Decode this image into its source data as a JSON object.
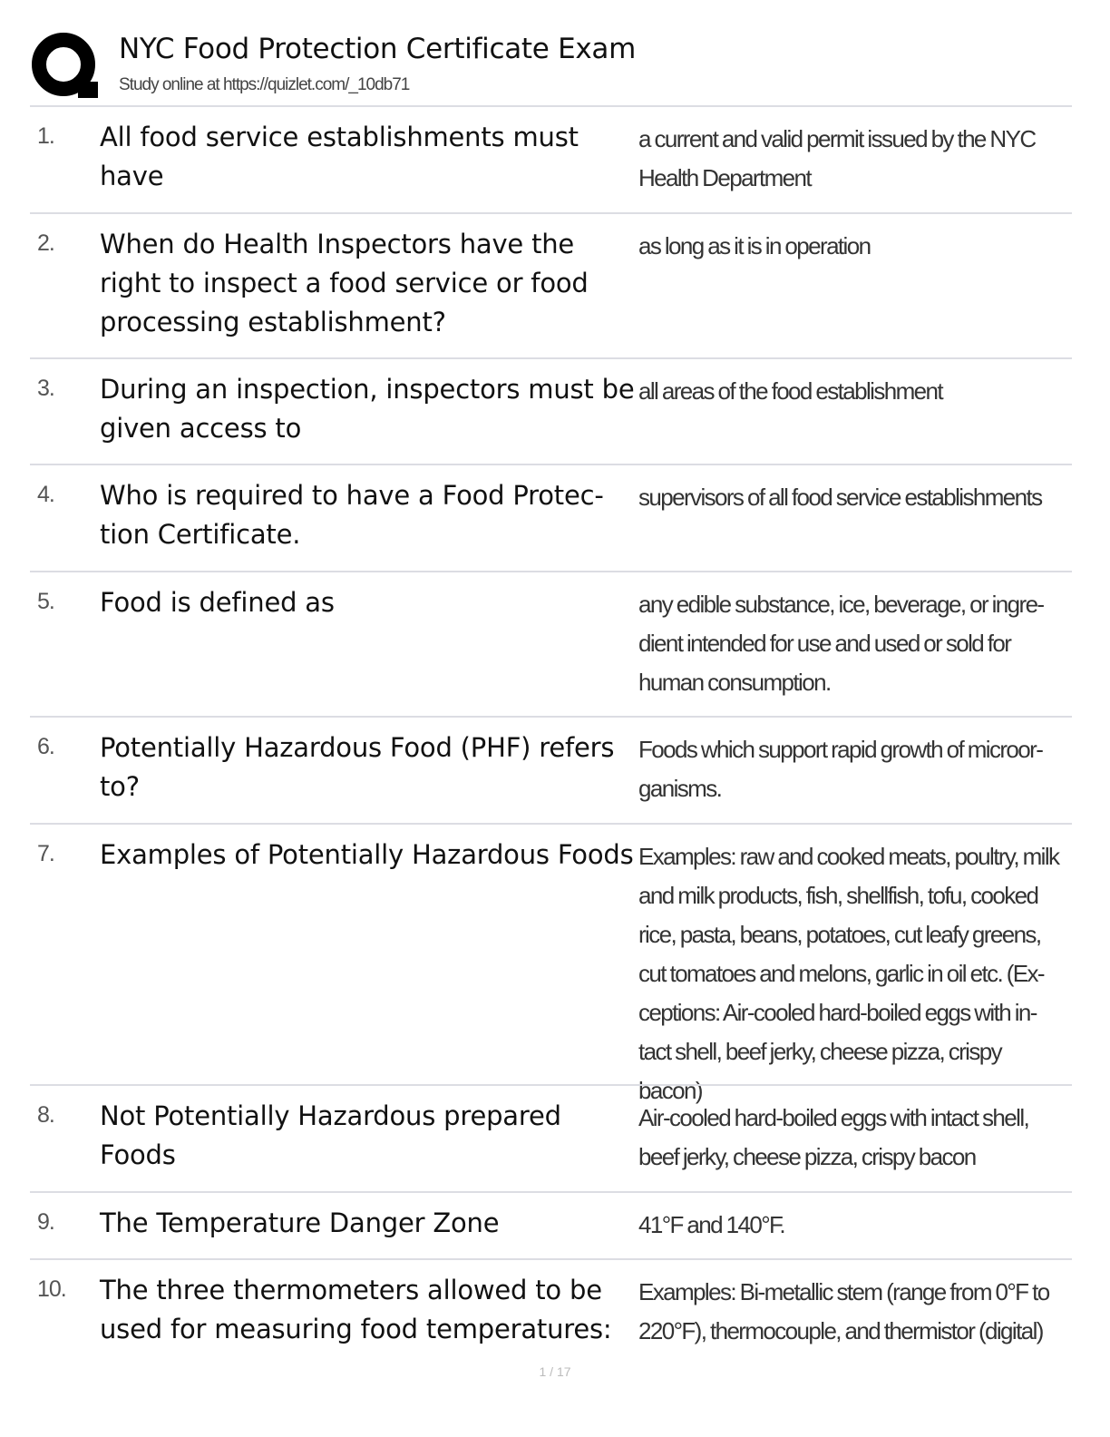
{
  "header": {
    "logo_letter": "Q",
    "title": "NYC Food Protection Certificate Exam",
    "subtitle": "Study online at https://quizlet.com/_10db71"
  },
  "cards": [
    {
      "number": "1.",
      "term": "All food service establishments must have",
      "definition": "a current and valid permit issued by the NYC Health Department"
    },
    {
      "number": "2.",
      "term": "When do Health Inspectors have the right to inspect a food service or food processing establishment?",
      "definition": "as long as it is in operation"
    },
    {
      "number": "3.",
      "term": "During an inspection, inspectors must be given access to",
      "definition": "all areas of the food establishment"
    },
    {
      "number": "4.",
      "term": "Who is required to have a Food Protec-tion Certificate.",
      "definition": "supervisors of all food service establishments"
    },
    {
      "number": "5.",
      "term": "Food is defined as",
      "definition": "any edible substance, ice, beverage, or ingre-dient intended for use and used or sold for human consumption."
    },
    {
      "number": "6.",
      "term": "Potentially Hazardous Food (PHF) refers to?",
      "definition": "Foods which support rapid growth of microor-ganisms."
    },
    {
      "number": "7.",
      "term": "Examples of Potentially Hazardous Foods",
      "definition": "Examples: raw and cooked meats, poultry, milk and milk products, fish, shellfish, tofu, cooked rice, pasta, beans, potatoes, cut leafy greens, cut tomatoes and melons, garlic in oil etc. (Ex-ceptions: Air-cooled hard-boiled eggs with in-tact shell, beef jerky, cheese pizza, crispy bacon)"
    },
    {
      "number": "8.",
      "term": "Not Potentially Hazardous prepared Foods",
      "definition": "Air-cooled hard-boiled eggs with intact shell, beef jerky, cheese pizza, crispy bacon"
    },
    {
      "number": "9.",
      "term": "The Temperature Danger Zone",
      "definition": "41°F and 140°F."
    },
    {
      "number": "10.",
      "term": "The three thermometers allowed to be used for measuring food temperatures:",
      "definition": "Examples: Bi-metallic stem (range from 0°F to 220°F), thermocouple, and thermistor (digital)"
    }
  ],
  "footer": {
    "page": "1 / 17"
  }
}
